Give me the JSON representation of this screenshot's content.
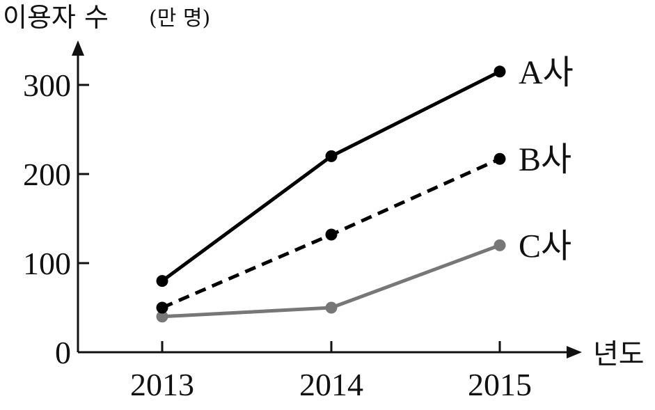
{
  "chart_data": {
    "type": "line",
    "ylabel": "이용자 수",
    "yunit": "(만 명)",
    "xlabel": "년도",
    "categories": [
      "2013",
      "2014",
      "2015"
    ],
    "yticks": [
      0,
      100,
      200,
      300
    ],
    "ylim": [
      0,
      330
    ],
    "grid": false,
    "series": [
      {
        "name": "A사",
        "values": [
          80,
          220,
          315
        ],
        "color": "#000000",
        "dash": "solid"
      },
      {
        "name": "B사",
        "values": [
          50,
          132,
          217
        ],
        "color": "#000000",
        "dash": "dashed"
      },
      {
        "name": "C사",
        "values": [
          40,
          50,
          120
        ],
        "color": "#777777",
        "dash": "solid"
      }
    ]
  }
}
